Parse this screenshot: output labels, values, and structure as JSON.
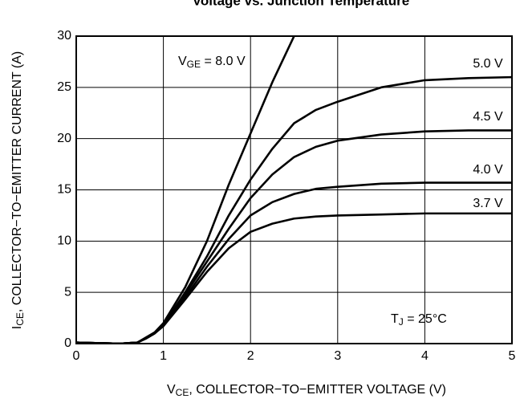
{
  "chart_data": {
    "type": "line",
    "title": "Voltage vs. Junction Temperature",
    "x_label": {
      "symbol": "V",
      "subscript": "CE",
      "text": ", COLLECTOR−TO−EMITTER VOLTAGE (V)"
    },
    "y_label": {
      "symbol": "I",
      "subscript": "CE",
      "text": ", COLLECTOR−TO−EMITTER CURRENT (A)"
    },
    "annotation": {
      "symbol": "T",
      "subscript": "J",
      "text": " = 25°C"
    },
    "x": [
      0,
      0.5,
      0.7,
      0.8,
      0.9,
      1.0,
      1.25,
      1.5,
      1.75,
      2.0,
      2.25,
      2.5,
      2.75,
      3.0,
      3.5,
      4.0,
      4.5,
      5.0
    ],
    "series": [
      {
        "name": "8.0 V",
        "name_prefix": {
          "symbol": "V",
          "subscript": "GE",
          "text": " = "
        },
        "color": "#000000",
        "values": [
          0.1,
          0,
          0.1,
          0.6,
          1.1,
          2.0,
          5.5,
          10,
          15.5,
          20.5,
          25.5,
          30,
          null,
          null,
          null,
          null,
          null,
          null
        ]
      },
      {
        "name": "5.0 V",
        "color": "#000000",
        "values": [
          0.1,
          0,
          0.1,
          0.5,
          1.0,
          1.8,
          5,
          8.5,
          12.5,
          16,
          19,
          21.5,
          22.8,
          23.6,
          25,
          25.7,
          25.9,
          26
        ]
      },
      {
        "name": "4.5 V",
        "color": "#000000",
        "values": [
          0.1,
          0,
          0.1,
          0.5,
          1.0,
          1.8,
          4.8,
          8,
          11.2,
          14.2,
          16.5,
          18.2,
          19.2,
          19.8,
          20.4,
          20.7,
          20.8,
          20.8
        ]
      },
      {
        "name": "4.0 V",
        "color": "#000000",
        "values": [
          0.1,
          0,
          0.1,
          0.5,
          1.0,
          1.8,
          4.5,
          7.5,
          10.2,
          12.5,
          13.8,
          14.6,
          15.1,
          15.3,
          15.6,
          15.7,
          15.7,
          15.7
        ]
      },
      {
        "name": "3.7 V",
        "color": "#000000",
        "values": [
          0.1,
          0,
          0.1,
          0.5,
          1.0,
          1.7,
          4.3,
          7,
          9.3,
          10.9,
          11.7,
          12.2,
          12.4,
          12.5,
          12.6,
          12.7,
          12.7,
          12.7
        ]
      }
    ],
    "xlim": [
      0,
      5
    ],
    "xticks": [
      0,
      1,
      2,
      3,
      4,
      5
    ],
    "ylim": [
      0,
      30
    ],
    "yticks": [
      0,
      5,
      10,
      15,
      20,
      25,
      30
    ],
    "grid": true
  }
}
